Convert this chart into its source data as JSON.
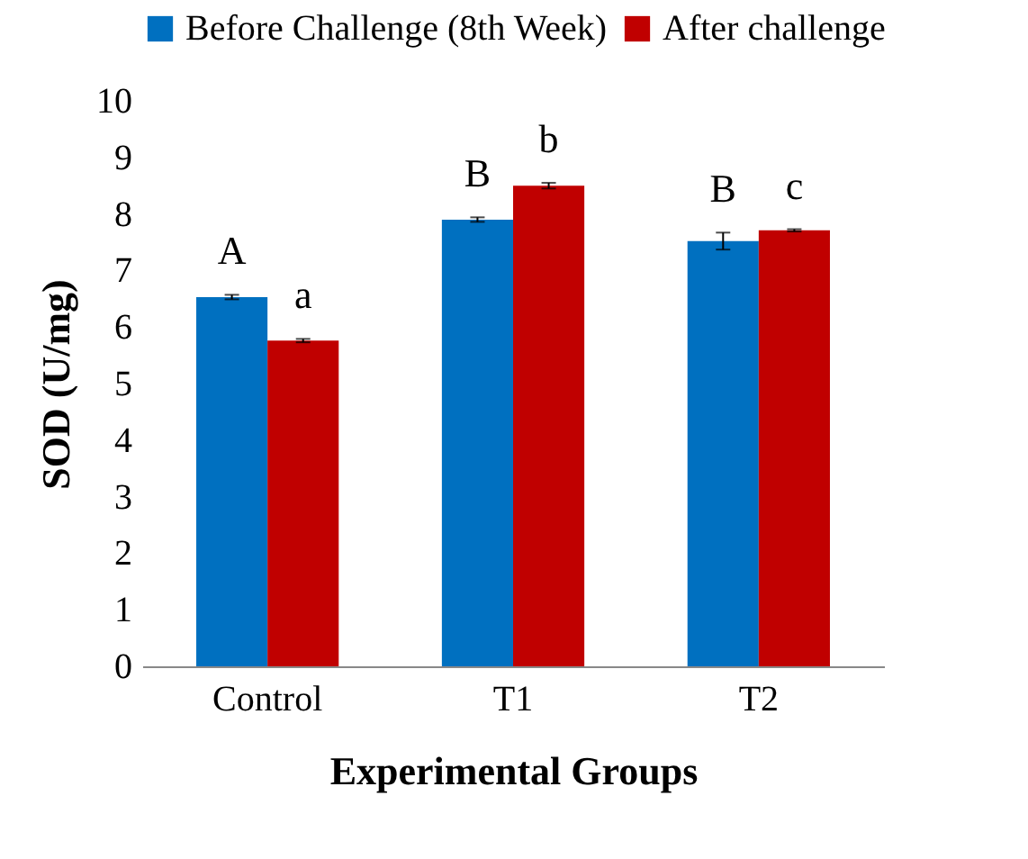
{
  "chart_data": {
    "type": "bar",
    "xlabel": "Experimental Groups",
    "ylabel": "SOD (U/mg)",
    "categories": [
      "Control",
      "T1",
      "T2"
    ],
    "series": [
      {
        "name": "Before Challenge (8th Week)",
        "color": "#0070c0",
        "values": [
          6.53,
          7.9,
          7.52
        ],
        "errors": [
          0.04,
          0.04,
          0.15
        ]
      },
      {
        "name": "After challenge",
        "color": "#c00000",
        "values": [
          5.76,
          8.5,
          7.71
        ],
        "errors": [
          0.03,
          0.05,
          0.02
        ]
      }
    ],
    "ylim": [
      0,
      10
    ],
    "yticks": [
      0,
      1,
      2,
      3,
      4,
      5,
      6,
      7,
      8,
      9,
      10
    ],
    "grid": false,
    "legend": "top",
    "annotations": [
      "A",
      "a",
      "B",
      "b",
      "B",
      "c"
    ]
  }
}
